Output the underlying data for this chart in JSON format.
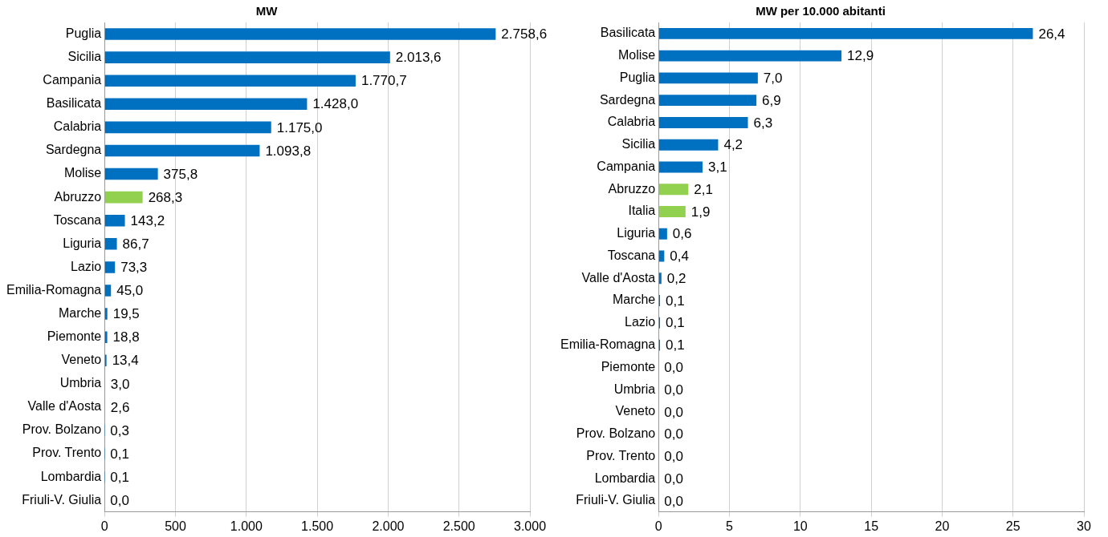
{
  "chart_data": [
    {
      "type": "bar",
      "orientation": "horizontal",
      "title": "MW",
      "categories": [
        "Puglia",
        "Sicilia",
        "Campania",
        "Basilicata",
        "Calabria",
        "Sardegna",
        "Molise",
        "Abruzzo",
        "Toscana",
        "Liguria",
        "Lazio",
        "Emilia-Romagna",
        "Marche",
        "Piemonte",
        "Veneto",
        "Umbria",
        "Valle d'Aosta",
        "Prov. Bolzano",
        "Prov. Trento",
        "Lombardia",
        "Friuli-V. Giulia"
      ],
      "values": [
        2758.6,
        2013.6,
        1770.7,
        1428.0,
        1175.0,
        1093.8,
        375.8,
        268.3,
        143.2,
        86.7,
        73.3,
        45.0,
        19.5,
        18.8,
        13.4,
        3.0,
        2.6,
        0.3,
        0.1,
        0.1,
        0.0
      ],
      "value_labels": [
        "2.758,6",
        "2.013,6",
        "1.770,7",
        "1.428,0",
        "1.175,0",
        "1.093,8",
        "375,8",
        "268,3",
        "143,2",
        "86,7",
        "73,3",
        "45,0",
        "19,5",
        "18,8",
        "13,4",
        "3,0",
        "2,6",
        "0,3",
        "0,1",
        "0,1",
        "0,0"
      ],
      "colors": [
        "#0070c0",
        "#0070c0",
        "#0070c0",
        "#0070c0",
        "#0070c0",
        "#0070c0",
        "#0070c0",
        "#92d050",
        "#0070c0",
        "#0070c0",
        "#0070c0",
        "#0070c0",
        "#0070c0",
        "#0070c0",
        "#0070c0",
        "#0070c0",
        "#0070c0",
        "#0070c0",
        "#0070c0",
        "#0070c0",
        "#0070c0"
      ],
      "xlim": [
        0,
        3000
      ],
      "xticks": [
        0,
        500,
        {
          "value": 1000,
          "label": "1.000"
        },
        {
          "value": 1500,
          "label": "1.500"
        },
        {
          "value": 2000,
          "label": "2.000"
        },
        {
          "value": 2500,
          "label": "2.500"
        },
        {
          "value": 3000,
          "label": "3.000"
        }
      ],
      "grid": "x",
      "legend": false
    },
    {
      "type": "bar",
      "orientation": "horizontal",
      "title": "MW per 10.000 abitanti",
      "categories": [
        "Basilicata",
        "Molise",
        "Puglia",
        "Sardegna",
        "Calabria",
        "Sicilia",
        "Campania",
        "Abruzzo",
        "Italia",
        "Liguria",
        "Toscana",
        "Valle d'Aosta",
        "Marche",
        "Lazio",
        "Emilia-Romagna",
        "Piemonte",
        "Umbria",
        "Veneto",
        "Prov. Bolzano",
        "Prov. Trento",
        "Lombardia",
        "Friuli-V. Giulia"
      ],
      "values": [
        26.4,
        12.9,
        7.0,
        6.9,
        6.3,
        4.2,
        3.1,
        2.1,
        1.9,
        0.6,
        0.4,
        0.2,
        0.1,
        0.1,
        0.1,
        0.0,
        0.0,
        0.0,
        0.0,
        0.0,
        0.0,
        0.0
      ],
      "value_labels": [
        "26,4",
        "12,9",
        "7,0",
        "6,9",
        "6,3",
        "4,2",
        "3,1",
        "2,1",
        "1,9",
        "0,6",
        "0,4",
        "0,2",
        "0,1",
        "0,1",
        "0,1",
        "0,0",
        "0,0",
        "0,0",
        "0,0",
        "0,0",
        "0,0",
        "0,0"
      ],
      "colors": [
        "#0070c0",
        "#0070c0",
        "#0070c0",
        "#0070c0",
        "#0070c0",
        "#0070c0",
        "#0070c0",
        "#92d050",
        "#92d050",
        "#0070c0",
        "#0070c0",
        "#0070c0",
        "#0070c0",
        "#0070c0",
        "#0070c0",
        "#0070c0",
        "#0070c0",
        "#0070c0",
        "#0070c0",
        "#0070c0",
        "#0070c0",
        "#0070c0"
      ],
      "xlim": [
        0,
        30
      ],
      "xticks": [
        0,
        5,
        10,
        15,
        20,
        25,
        30
      ],
      "grid": "x",
      "legend": false
    }
  ]
}
